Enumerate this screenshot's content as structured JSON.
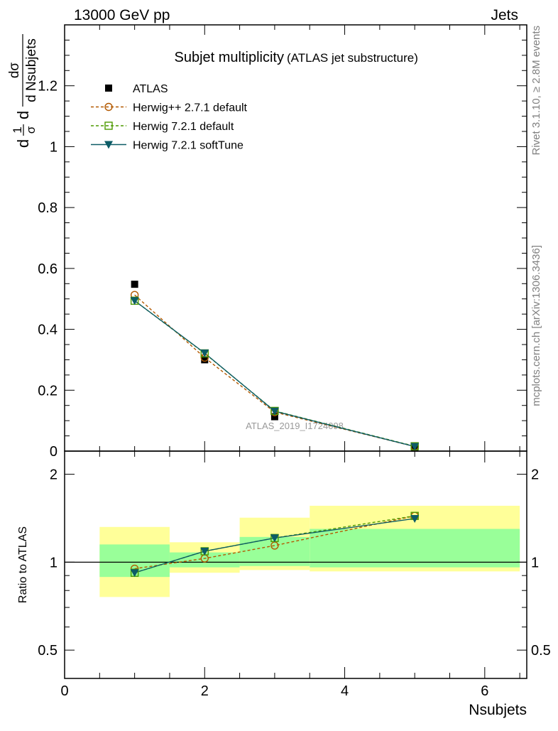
{
  "header": {
    "left": "13000 GeV pp",
    "right": "Jets"
  },
  "side_text": {
    "rivet": "Rivet 3.1.10, ≥ 2.8M events",
    "mcplots": "mcplots.cern.ch [arXiv:1306.3436]"
  },
  "watermark": "ATLAS_2019_I1724098",
  "colors": {
    "atlas": "#000000",
    "herwig_pp": "#b35900",
    "herwig_721": "#4d9900",
    "herwig_721_soft": "#0d5c66",
    "band_inner": "#99ff99",
    "band_outer": "#ffff99"
  },
  "chart_data": [
    {
      "type": "scatter",
      "title": "Subjet multiplicity",
      "title_suffix": "(ATLAS jet substructure)",
      "ylabel_frac_num": "1",
      "ylabel_frac_den": "σ",
      "ylabel_d": "d",
      "ylabel_inner_num": "dσ",
      "ylabel_inner_den": "d Nsubjets",
      "xlim": [
        0,
        6.6
      ],
      "ylim": [
        0,
        1.4
      ],
      "yticks": [
        "0",
        "0.2",
        "0.4",
        "0.6",
        "0.8",
        "1",
        "1.2"
      ],
      "ytick_values": [
        0,
        0.2,
        0.4,
        0.6,
        0.8,
        1.0,
        1.2
      ],
      "legend_position": "top-left",
      "x": [
        1,
        2,
        3,
        5
      ],
      "series": [
        {
          "name": "ATLAS",
          "values": [
            0.548,
            0.3,
            0.113,
            0.01
          ],
          "marker": "filled-square"
        },
        {
          "name": "Herwig++ 2.7.1 default",
          "values": [
            0.513,
            0.307,
            0.128,
            0.015
          ],
          "marker": "open-circle",
          "line": "dashed"
        },
        {
          "name": "Herwig 7.2.1 default",
          "values": [
            0.494,
            0.321,
            0.132,
            0.016
          ],
          "marker": "open-square",
          "line": "dashed"
        },
        {
          "name": "Herwig 7.2.1 softTune",
          "values": [
            0.494,
            0.322,
            0.131,
            0.015
          ],
          "marker": "filled-triangle-down",
          "line": "solid"
        }
      ]
    },
    {
      "type": "line",
      "ylabel": "Ratio to ATLAS",
      "xlabel": "Nsubjets",
      "xlim": [
        0,
        6.6
      ],
      "ylim_log": [
        0.4,
        2.4
      ],
      "xticks": [
        "0",
        "2",
        "4",
        "6"
      ],
      "xtick_values": [
        0,
        2,
        4,
        6
      ],
      "yticks": [
        "0.5",
        "1",
        "2"
      ],
      "ytick_values": [
        0.5,
        1,
        2
      ],
      "x": [
        1,
        2,
        3,
        5
      ],
      "bands": [
        {
          "x_range": [
            0.5,
            1.5
          ],
          "inner": [
            0.89,
            1.15
          ],
          "outer": [
            0.76,
            1.32
          ]
        },
        {
          "x_range": [
            1.5,
            2.5
          ],
          "inner": [
            0.96,
            1.08
          ],
          "outer": [
            0.92,
            1.17
          ]
        },
        {
          "x_range": [
            2.5,
            3.5
          ],
          "inner": [
            0.97,
            1.22
          ],
          "outer": [
            0.94,
            1.42
          ]
        },
        {
          "x_range": [
            3.5,
            6.5
          ],
          "inner": [
            0.96,
            1.3
          ],
          "outer": [
            0.93,
            1.56
          ]
        }
      ],
      "series": [
        {
          "name": "Herwig++ 2.7.1 default",
          "values": [
            0.95,
            1.03,
            1.14,
            1.44
          ]
        },
        {
          "name": "Herwig 7.2.1 default",
          "values": [
            0.92,
            1.09,
            1.21,
            1.44
          ]
        },
        {
          "name": "Herwig 7.2.1 softTune",
          "values": [
            0.92,
            1.09,
            1.21,
            1.41
          ]
        }
      ]
    }
  ]
}
